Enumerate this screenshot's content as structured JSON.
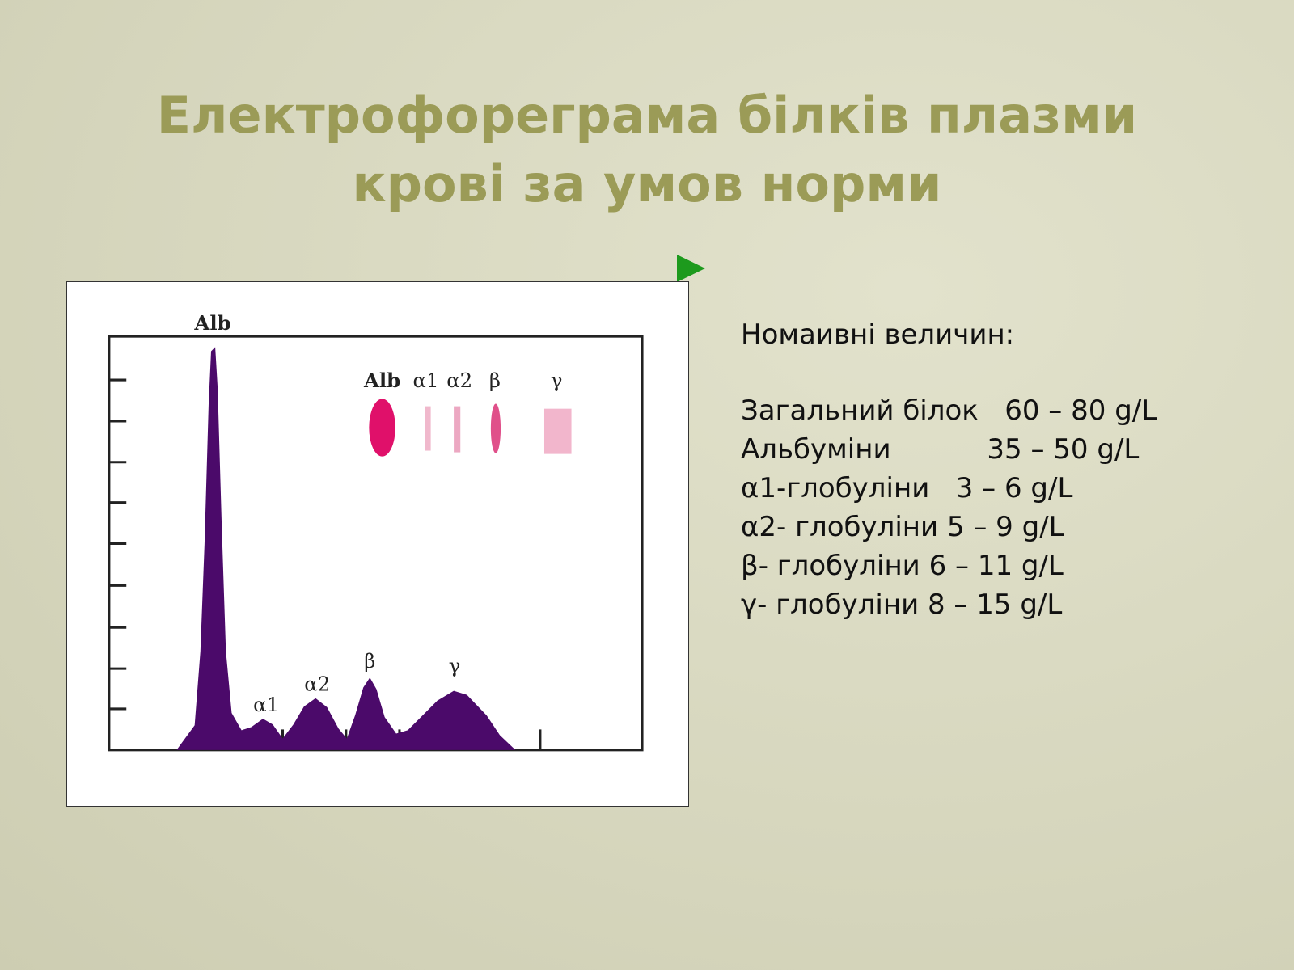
{
  "title": {
    "lines": [
      "Електрофореграма білків плазми",
      "крові за умов норми"
    ]
  },
  "figure": {
    "peak_labels": [
      "Alb",
      "α1",
      "α2",
      "β",
      "γ"
    ],
    "gel_labels": [
      "Alb",
      "α1",
      "α2",
      "β",
      "γ"
    ]
  },
  "norms": {
    "heading": "Номаивні величин:",
    "rows": [
      "Загальний білок   60 – 80 g/L",
      "Альбуміни           35 – 50 g/L",
      "α1-глобуліни   3 – 6 g/L",
      "α2- глобуліни 5 – 9 g/L",
      "β- глобуліни 6 – 11 g/L",
      "γ- глобуліни 8 – 15 g/L"
    ]
  }
}
